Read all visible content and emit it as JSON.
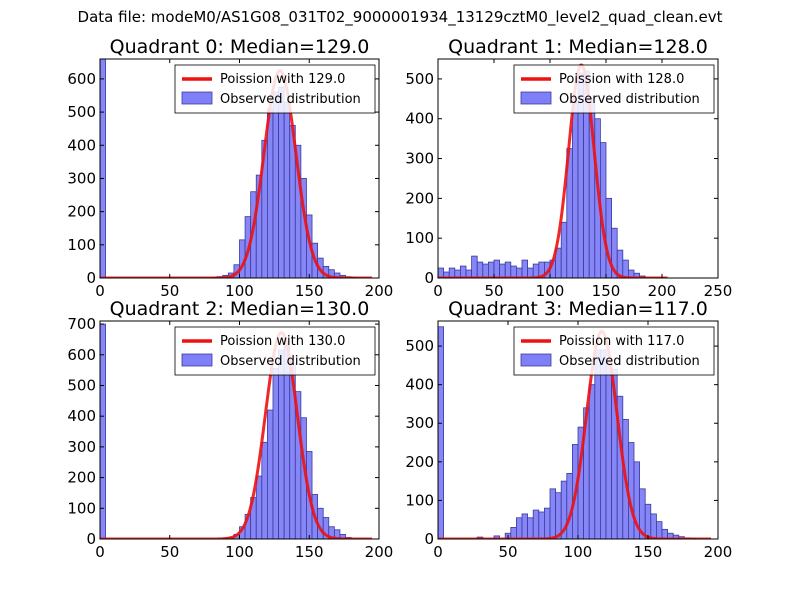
{
  "suptitle": "Data file: modeM0/AS1G08_031T02_9000001934_13129cztM0_level2_quad_clean.evt",
  "colors": {
    "bar_fill": "#7f7ff7",
    "bar_edge": "#3a3aa0",
    "curve": "#ee1111"
  },
  "chart_data": [
    {
      "type": "bar",
      "title": "Quadrant 0: Median=129.0",
      "legend": {
        "line": "Poission with 129.0",
        "bars": "Observed distribution",
        "placement": "top-right"
      },
      "xlim": [
        0,
        200
      ],
      "ylim": [
        0,
        660
      ],
      "xticks": [
        0,
        50,
        100,
        150,
        200
      ],
      "yticks": [
        0,
        100,
        200,
        300,
        400,
        500,
        600
      ],
      "bin_width": 4,
      "bin_starts": [
        0,
        80,
        84,
        88,
        92,
        96,
        100,
        104,
        108,
        112,
        116,
        120,
        124,
        128,
        132,
        136,
        140,
        144,
        148,
        152,
        156,
        160,
        164,
        168,
        172,
        176,
        180
      ],
      "counts": [
        660,
        2,
        4,
        8,
        15,
        40,
        115,
        185,
        260,
        310,
        415,
        510,
        560,
        575,
        530,
        460,
        400,
        300,
        190,
        105,
        60,
        35,
        25,
        15,
        8,
        4,
        2
      ],
      "poisson_mean": 129,
      "poisson_peak": 625
    },
    {
      "type": "bar",
      "title": "Quadrant 1: Median=128.0",
      "legend": {
        "line": "Poission with 128.0",
        "bars": "Observed distribution",
        "placement": "top-right"
      },
      "xlim": [
        0,
        250
      ],
      "ylim": [
        0,
        550
      ],
      "xticks": [
        0,
        50,
        100,
        150,
        200,
        250
      ],
      "yticks": [
        0,
        100,
        200,
        300,
        400,
        500
      ],
      "bin_width": 5,
      "bin_starts": [
        0,
        5,
        10,
        15,
        20,
        25,
        30,
        35,
        40,
        45,
        50,
        55,
        60,
        65,
        70,
        75,
        80,
        85,
        90,
        95,
        100,
        105,
        110,
        115,
        120,
        125,
        130,
        135,
        140,
        145,
        150,
        155,
        160,
        165,
        170,
        175,
        180
      ],
      "counts": [
        25,
        15,
        25,
        20,
        30,
        20,
        55,
        40,
        35,
        40,
        45,
        35,
        40,
        30,
        25,
        45,
        25,
        35,
        40,
        40,
        45,
        75,
        140,
        325,
        440,
        515,
        520,
        450,
        400,
        340,
        200,
        125,
        70,
        45,
        20,
        12,
        5
      ],
      "poisson_mean": 128,
      "poisson_peak": 535
    },
    {
      "type": "bar",
      "title": "Quadrant 2: Median=130.0",
      "legend": {
        "line": "Poission with 130.0",
        "bars": "Observed distribution",
        "placement": "top-right"
      },
      "xlim": [
        0,
        200
      ],
      "ylim": [
        0,
        710
      ],
      "xticks": [
        0,
        50,
        100,
        150,
        200
      ],
      "yticks": [
        0,
        100,
        200,
        300,
        400,
        500,
        600,
        700
      ],
      "bin_width": 4,
      "bin_starts": [
        0,
        88,
        92,
        96,
        100,
        104,
        108,
        112,
        116,
        120,
        124,
        128,
        132,
        136,
        140,
        144,
        148,
        152,
        156,
        160,
        164,
        168,
        172,
        176
      ],
      "counts": [
        700,
        3,
        5,
        15,
        40,
        80,
        135,
        205,
        315,
        420,
        555,
        615,
        630,
        570,
        480,
        395,
        285,
        145,
        100,
        70,
        40,
        30,
        15,
        5
      ],
      "poisson_mean": 130,
      "poisson_peak": 672
    },
    {
      "type": "bar",
      "title": "Quadrant 3: Median=117.0",
      "legend": {
        "line": "Poission with 117.0",
        "bars": "Observed distribution",
        "placement": "top-right"
      },
      "xlim": [
        0,
        200
      ],
      "ylim": [
        0,
        565
      ],
      "xticks": [
        0,
        50,
        100,
        150,
        200
      ],
      "yticks": [
        0,
        100,
        200,
        300,
        400,
        500
      ],
      "bin_width": 4,
      "bin_starts": [
        0,
        28,
        40,
        48,
        52,
        56,
        60,
        64,
        68,
        72,
        76,
        80,
        84,
        88,
        92,
        96,
        100,
        104,
        108,
        112,
        116,
        120,
        124,
        128,
        132,
        136,
        140,
        144,
        148,
        152,
        156,
        160,
        164,
        168,
        172,
        176,
        180
      ],
      "counts": [
        550,
        5,
        8,
        15,
        30,
        55,
        65,
        55,
        75,
        70,
        80,
        130,
        120,
        150,
        170,
        245,
        290,
        340,
        400,
        490,
        490,
        460,
        440,
        370,
        310,
        250,
        200,
        130,
        90,
        65,
        45,
        25,
        15,
        10,
        6,
        3,
        2
      ],
      "poisson_mean": 117,
      "poisson_peak": 538
    }
  ]
}
